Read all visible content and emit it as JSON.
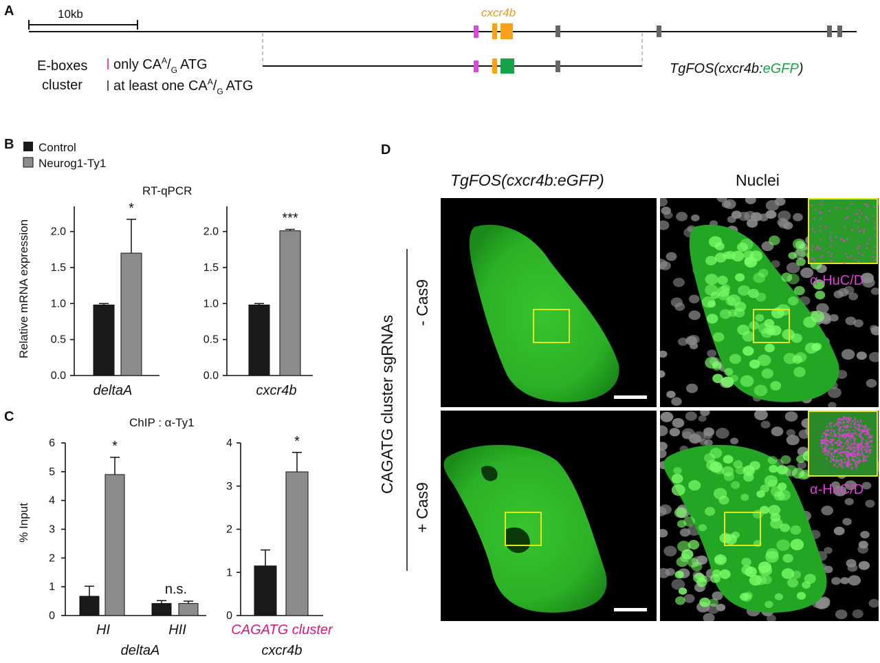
{
  "panelA": {
    "letter": "A",
    "scale_label": "10kb",
    "gene_label": "cxcr4b",
    "eboxes_title_1": "E-boxes",
    "eboxes_title_2": "cluster",
    "legend_only": "only CA",
    "legend_only_sup": "A",
    "legend_only_sub": "G",
    "legend_only_end": "ATG",
    "legend_atleast": "at least one CA",
    "legend_atleast_sup": "A",
    "legend_atleast_sub": "G",
    "legend_atleast_end": "ATG",
    "transgene_prefix": "TgFOS(cxcr4b:",
    "transgene_egfp": "eGFP",
    "transgene_suffix": ")",
    "colors": {
      "magenta": "#e83fe0",
      "orange": "#f7a21c",
      "green": "#17a34a",
      "grey": "#666666",
      "gene_label": "#e59a1d"
    }
  },
  "panelB": {
    "letter": "B",
    "legend": [
      {
        "label": "Control",
        "color": "#1a1a1a"
      },
      {
        "label": "Neurog1-Ty1",
        "color": "#8c8c8c"
      }
    ],
    "title": "RT-qPCR",
    "ylabel": "Relative mRNA expression"
  },
  "panelC": {
    "letter": "C",
    "title": "ChIP : α-Ty1",
    "ylabel": "% Input",
    "cagatg_color": "#d8157f"
  },
  "panelD": {
    "letter": "D",
    "col1_title": "TgFOS(cxcr4b:eGFP)",
    "col2_title": "Nuclei",
    "row_group_label": "CAGATG cluster sgRNAs",
    "row1_label": "- Cas9",
    "row2_label": "+ Cas9",
    "inset_label": "α-HuC/D",
    "inset_label_color": "#e040d8",
    "box_color": "#e6e619"
  },
  "chart_data": [
    {
      "id": "b1",
      "type": "bar",
      "panel": "B",
      "categories": [
        "deltaA"
      ],
      "xlabel": "deltaA",
      "series": [
        {
          "name": "Control",
          "values": [
            0.98
          ],
          "err": [
            0.02
          ]
        },
        {
          "name": "Neurog1-Ty1",
          "values": [
            1.7
          ],
          "err": [
            0.47
          ]
        }
      ],
      "yticks": [
        "0.0",
        "0.5",
        "1.0",
        "1.5",
        "2.0"
      ],
      "ylim": [
        0,
        2.35
      ],
      "sig": "*"
    },
    {
      "id": "b2",
      "type": "bar",
      "panel": "B",
      "categories": [
        "cxcr4b"
      ],
      "xlabel": "cxcr4b",
      "series": [
        {
          "name": "Control",
          "values": [
            0.98
          ],
          "err": [
            0.02
          ]
        },
        {
          "name": "Neurog1-Ty1",
          "values": [
            2.01
          ],
          "err": [
            0.02
          ]
        }
      ],
      "yticks": [
        "0.0",
        "0.5",
        "1.0",
        "1.5",
        "2.0"
      ],
      "ylim": [
        0,
        2.35
      ],
      "sig": "***"
    },
    {
      "id": "c1",
      "type": "bar",
      "panel": "C",
      "categories": [
        "HI",
        "HII"
      ],
      "xlabel": "deltaA",
      "series": [
        {
          "name": "Control",
          "values": [
            0.67,
            0.42
          ],
          "err": [
            0.35,
            0.1
          ]
        },
        {
          "name": "Neurog1-Ty1",
          "values": [
            4.9,
            0.42
          ],
          "err": [
            0.6,
            0.08
          ]
        }
      ],
      "yticks": [
        "0",
        "1",
        "2",
        "3",
        "4",
        "5",
        "6"
      ],
      "ylim": [
        0,
        6
      ],
      "sig": [
        "*",
        "n.s."
      ]
    },
    {
      "id": "c2",
      "type": "bar",
      "panel": "C",
      "categories": [
        "CAGATG cluster"
      ],
      "xlabel": "cxcr4b",
      "series": [
        {
          "name": "Control",
          "values": [
            1.15
          ],
          "err": [
            0.37
          ]
        },
        {
          "name": "Neurog1-Ty1",
          "values": [
            3.33
          ],
          "err": [
            0.45
          ]
        }
      ],
      "yticks": [
        "0",
        "1",
        "2",
        "3",
        "4"
      ],
      "ylim": [
        0,
        4
      ],
      "sig": "*"
    }
  ]
}
